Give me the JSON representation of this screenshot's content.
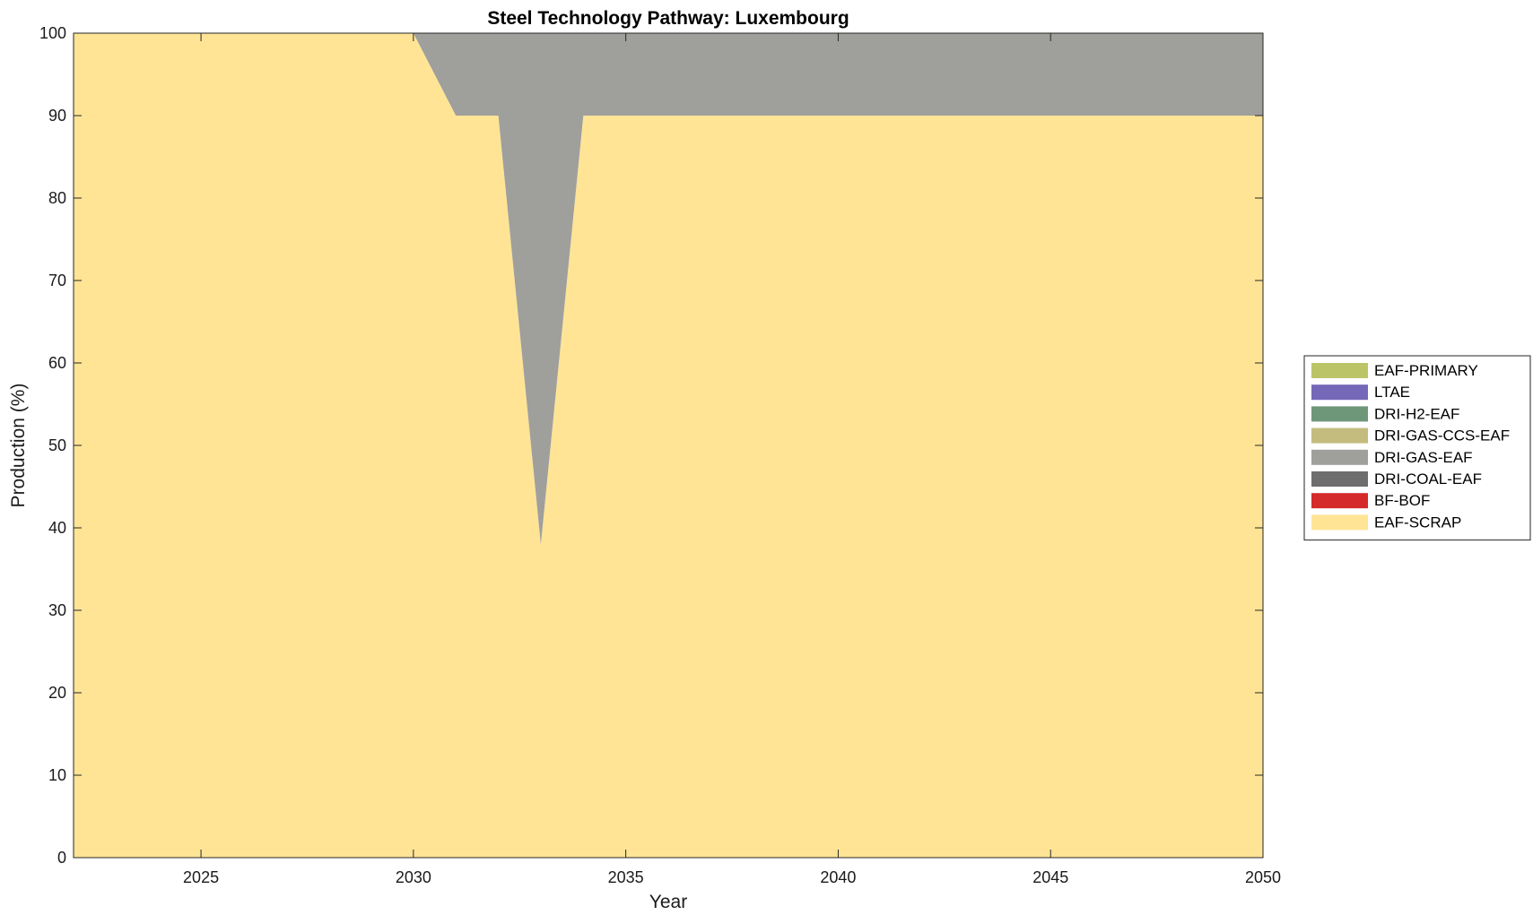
{
  "chart_data": {
    "type": "area",
    "stacked": true,
    "title": "Steel Technology Pathway: Luxembourg",
    "xlabel": "Year",
    "ylabel": "Production (%)",
    "xlim": [
      2022,
      2050
    ],
    "ylim": [
      0,
      100
    ],
    "xticks": [
      2025,
      2030,
      2035,
      2040,
      2045,
      2050
    ],
    "yticks": [
      0,
      10,
      20,
      30,
      40,
      50,
      60,
      70,
      80,
      90,
      100
    ],
    "grid": false,
    "legend_position": "right-outside",
    "x": [
      2022,
      2023,
      2024,
      2025,
      2026,
      2027,
      2028,
      2029,
      2030,
      2031,
      2032,
      2033,
      2034,
      2035,
      2036,
      2037,
      2038,
      2039,
      2040,
      2041,
      2042,
      2043,
      2044,
      2045,
      2046,
      2047,
      2048,
      2049,
      2050
    ],
    "series": [
      {
        "name": "EAF-SCRAP",
        "color": "#FFE496",
        "values": [
          100,
          100,
          100,
          100,
          100,
          100,
          100,
          100,
          100,
          90,
          90,
          38,
          90,
          90,
          90,
          90,
          90,
          90,
          90,
          90,
          90,
          90,
          90,
          90,
          90,
          90,
          90,
          90,
          90
        ]
      },
      {
        "name": "BF-BOF",
        "color": "#D42A2A",
        "values": [
          0,
          0,
          0,
          0,
          0,
          0,
          0,
          0,
          0,
          0,
          0,
          0,
          0,
          0,
          0,
          0,
          0,
          0,
          0,
          0,
          0,
          0,
          0,
          0,
          0,
          0,
          0,
          0,
          0
        ]
      },
      {
        "name": "DRI-COAL-EAF",
        "color": "#6E6E6E",
        "values": [
          0,
          0,
          0,
          0,
          0,
          0,
          0,
          0,
          0,
          0,
          0,
          0,
          0,
          0,
          0,
          0,
          0,
          0,
          0,
          0,
          0,
          0,
          0,
          0,
          0,
          0,
          0,
          0,
          0
        ]
      },
      {
        "name": "DRI-GAS-EAF",
        "color": "#9F9F9C",
        "values": [
          0,
          0,
          0,
          0,
          0,
          0,
          0,
          0,
          0,
          10,
          10,
          62,
          10,
          10,
          10,
          10,
          10,
          10,
          10,
          10,
          10,
          10,
          10,
          10,
          10,
          10,
          10,
          10,
          10
        ]
      },
      {
        "name": "DRI-GAS-CCS-EAF",
        "color": "#C4BC7E",
        "values": [
          0,
          0,
          0,
          0,
          0,
          0,
          0,
          0,
          0,
          0,
          0,
          0,
          0,
          0,
          0,
          0,
          0,
          0,
          0,
          0,
          0,
          0,
          0,
          0,
          0,
          0,
          0,
          0,
          0
        ]
      },
      {
        "name": "DRI-H2-EAF",
        "color": "#6E977A",
        "values": [
          0,
          0,
          0,
          0,
          0,
          0,
          0,
          0,
          0,
          0,
          0,
          0,
          0,
          0,
          0,
          0,
          0,
          0,
          0,
          0,
          0,
          0,
          0,
          0,
          0,
          0,
          0,
          0,
          0
        ]
      },
      {
        "name": "LTAE",
        "color": "#7568B8",
        "values": [
          0,
          0,
          0,
          0,
          0,
          0,
          0,
          0,
          0,
          0,
          0,
          0,
          0,
          0,
          0,
          0,
          0,
          0,
          0,
          0,
          0,
          0,
          0,
          0,
          0,
          0,
          0,
          0,
          0
        ]
      },
      {
        "name": "EAF-PRIMARY",
        "color": "#BCC468",
        "values": [
          0,
          0,
          0,
          0,
          0,
          0,
          0,
          0,
          0,
          0,
          0,
          0,
          0,
          0,
          0,
          0,
          0,
          0,
          0,
          0,
          0,
          0,
          0,
          0,
          0,
          0,
          0,
          0,
          0
        ]
      }
    ],
    "legend_order": [
      "EAF-PRIMARY",
      "LTAE",
      "DRI-H2-EAF",
      "DRI-GAS-CCS-EAF",
      "DRI-GAS-EAF",
      "DRI-COAL-EAF",
      "BF-BOF",
      "EAF-SCRAP"
    ]
  }
}
